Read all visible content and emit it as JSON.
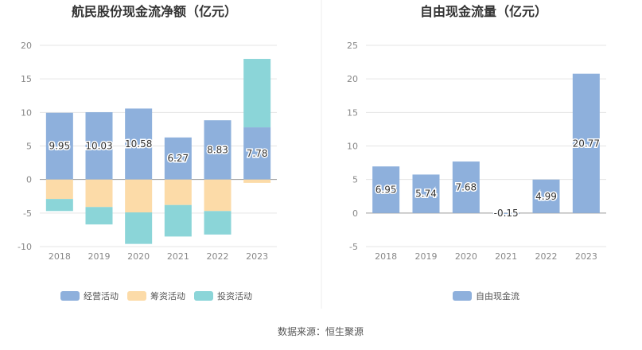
{
  "source": "数据来源：恒生聚源",
  "colors": {
    "operating": "#8eb0dc",
    "financing": "#fcdba8",
    "investing": "#8bd5d8",
    "fcf": "#8eb0dc",
    "grid": "#e5e5e5",
    "axis_text": "#888888",
    "title_text": "#333333"
  },
  "chart_data": [
    {
      "type": "bar",
      "stacked": true,
      "title": "航民股份现金流净额（亿元）",
      "categories": [
        "2018",
        "2019",
        "2020",
        "2021",
        "2022",
        "2023"
      ],
      "ylim": [
        -10,
        20
      ],
      "yticks": [
        "20",
        "15",
        "10",
        "5",
        "0",
        "-5",
        "-10"
      ],
      "grid": true,
      "legend_position": "bottom",
      "series": [
        {
          "name": "经营活动",
          "values": [
            9.95,
            10.03,
            10.58,
            6.27,
            8.83,
            7.78
          ],
          "labels": [
            "9.95",
            "10.03",
            "10.58",
            "6.27",
            "8.83",
            "7.78"
          ]
        },
        {
          "name": "筹资活动",
          "values": [
            -2.9,
            -4.1,
            -4.9,
            -3.8,
            -4.7,
            -0.5
          ]
        },
        {
          "name": "投资活动",
          "values": [
            -1.8,
            -2.6,
            -4.7,
            -4.7,
            -3.5,
            10.2
          ]
        }
      ]
    },
    {
      "type": "bar",
      "title": "自由现金流量（亿元）",
      "categories": [
        "2018",
        "2019",
        "2020",
        "2021",
        "2022",
        "2023"
      ],
      "ylim": [
        -5,
        25
      ],
      "yticks": [
        "25",
        "20",
        "15",
        "10",
        "5",
        "0",
        "-5"
      ],
      "grid": true,
      "legend_position": "bottom",
      "series": [
        {
          "name": "自由现金流",
          "values": [
            6.95,
            5.74,
            7.68,
            -0.15,
            4.99,
            20.77
          ],
          "labels": [
            "6.95",
            "5.74",
            "7.68",
            "-0.15",
            "4.99",
            "20.77"
          ]
        }
      ]
    }
  ]
}
